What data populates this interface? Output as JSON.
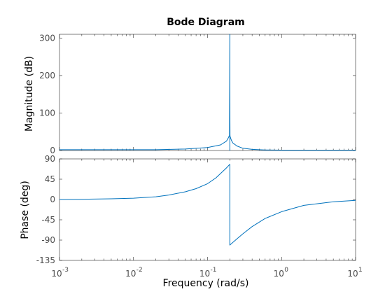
{
  "figure": {
    "title": "Bode Diagram",
    "xlabel": "Frequency  (rad/s)",
    "line_color": "#0072bd",
    "frame_color": "#262626",
    "tick_color": "#4d4d4d"
  },
  "chart_data": [
    {
      "type": "line",
      "name": "magnitude-plot",
      "title": "Bode Diagram",
      "xlabel": "",
      "ylabel": "Magnitude (dB)",
      "xscale": "log",
      "xlim": [
        0.001,
        10
      ],
      "ylim": [
        0,
        310
      ],
      "yticks": [
        0,
        100,
        200,
        300
      ],
      "grid": false,
      "series": [
        {
          "x": [
            0.001,
            0.002,
            0.005,
            0.01,
            0.02,
            0.05,
            0.1,
            0.15,
            0.18,
            0.19,
            0.195,
            0.198,
            0.2,
            0.2,
            0.2,
            0.201,
            0.202,
            0.205,
            0.21,
            0.22,
            0.25,
            0.3,
            0.4,
            0.6,
            1,
            2,
            5,
            10
          ],
          "y": [
            2,
            2,
            2,
            2,
            2,
            4,
            8,
            15,
            25,
            33,
            38,
            40,
            310,
            0,
            178,
            40,
            37,
            33,
            27,
            20,
            12,
            6,
            3,
            1.5,
            1,
            1,
            1,
            1
          ]
        }
      ]
    },
    {
      "type": "line",
      "name": "phase-plot",
      "xlabel": "Frequency  (rad/s)",
      "ylabel": "Phase (deg)",
      "xscale": "log",
      "xlim": [
        0.001,
        10
      ],
      "ylim": [
        -135,
        90
      ],
      "yticks": [
        -135,
        -90,
        -45,
        0,
        45,
        90
      ],
      "xticks": [
        0.001,
        0.01,
        0.1,
        1,
        10
      ],
      "xticklabels": [
        "10",
        "10",
        "10",
        "10",
        "10"
      ],
      "xtick_exponents": [
        "-3",
        "-2",
        "-1",
        "0",
        "1"
      ],
      "grid": false,
      "series": [
        {
          "x": [
            0.001,
            0.002,
            0.005,
            0.01,
            0.02,
            0.03,
            0.05,
            0.07,
            0.1,
            0.13,
            0.16,
            0.18,
            0.2,
            0.2,
            0.22,
            0.25,
            0.3,
            0.4,
            0.6,
            1,
            2,
            5,
            10
          ],
          "y": [
            0,
            0.5,
            1.5,
            3,
            6,
            10,
            17,
            24,
            35,
            48,
            62,
            70,
            78,
            -101,
            -95,
            -87,
            -76,
            -60,
            -42,
            -27,
            -13,
            -5,
            -2
          ]
        }
      ]
    }
  ]
}
